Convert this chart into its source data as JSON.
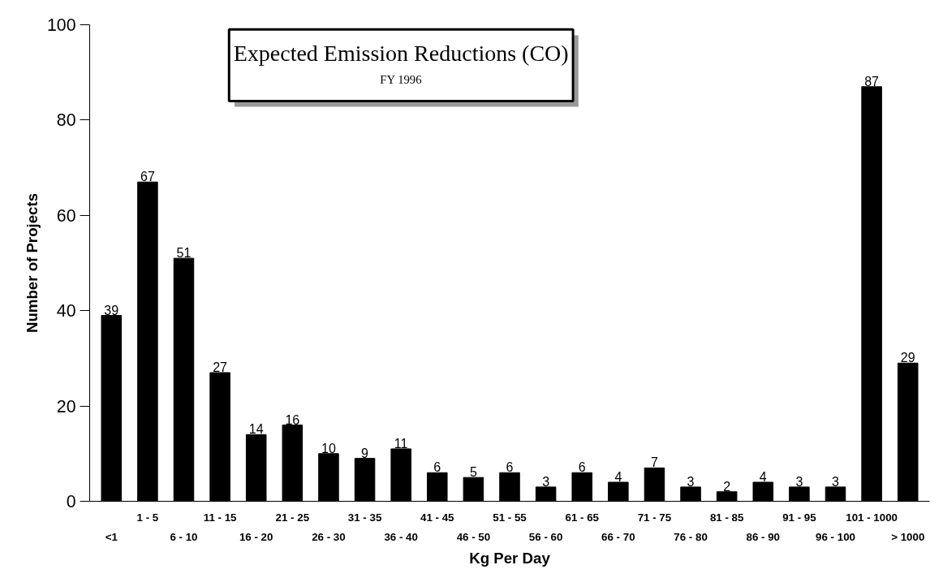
{
  "chart_data": {
    "type": "bar",
    "title": "Expected Emission Reductions (CO)",
    "subtitle": "FY 1996",
    "xlabel": "Kg Per Day",
    "ylabel": "Number of Projects",
    "categories": [
      "<1",
      "1 - 5",
      "6 - 10",
      "11 - 15",
      "16 - 20",
      "21 - 25",
      "26 - 30",
      "31 - 35",
      "36 - 40",
      "41 - 45",
      "46 - 50",
      "51 - 55",
      "56 - 60",
      "61 - 65",
      "66 - 70",
      "71 - 75",
      "76 - 80",
      "81 - 85",
      "86 - 90",
      "91 - 95",
      "96 - 100",
      "101 - 1000",
      "> 1000"
    ],
    "values": [
      39,
      67,
      51,
      27,
      14,
      16,
      10,
      9,
      11,
      6,
      5,
      6,
      3,
      6,
      4,
      7,
      3,
      2,
      4,
      3,
      3,
      87,
      29
    ],
    "color": "#000000",
    "ylim": [
      0,
      100
    ],
    "yticks": [
      0,
      20,
      40,
      60,
      80,
      100
    ],
    "grid": false,
    "data_labels": true
  }
}
